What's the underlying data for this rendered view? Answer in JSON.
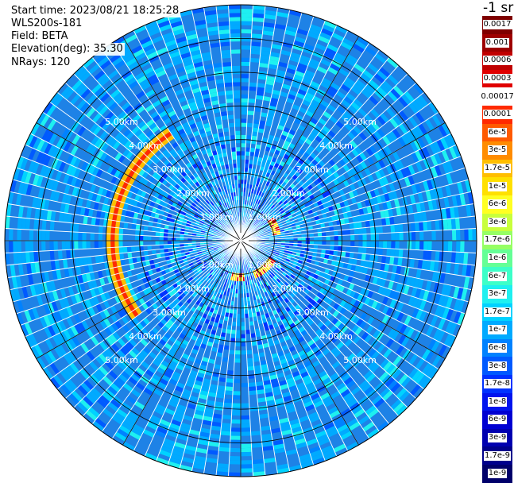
{
  "info": {
    "start_time": "Start time: 2023/08/21 18:25:28",
    "instrument": "WLS200s-181",
    "field": "Field: BETA",
    "elevation": "Elevation(deg): 35.30",
    "nrays": "NRays: 120"
  },
  "colorbar": {
    "unit_label": "-1 sr",
    "entries": [
      {
        "label": "0.0017",
        "color": "#7f0000"
      },
      {
        "label": "0.001",
        "color": "#9e0000"
      },
      {
        "label": "0.0006",
        "color": "#c00000"
      },
      {
        "label": "0.0003",
        "color": "#e00000"
      },
      {
        "label": "0.00017",
        "color": "#ffffff"
      },
      {
        "label": "0.0001",
        "color": "#ff2a00"
      },
      {
        "label": "6e-5",
        "color": "#ff5a00"
      },
      {
        "label": "3e-5",
        "color": "#ff8c00"
      },
      {
        "label": "1.7e-5",
        "color": "#ffbe00"
      },
      {
        "label": "1e-5",
        "color": "#ffe000"
      },
      {
        "label": "6e-6",
        "color": "#ffff22"
      },
      {
        "label": "3e-6",
        "color": "#c8ff3c"
      },
      {
        "label": "1.7e-6",
        "color": "#96ff64"
      },
      {
        "label": "1e-6",
        "color": "#64ff96"
      },
      {
        "label": "6e-7",
        "color": "#3cffc8"
      },
      {
        "label": "3e-7",
        "color": "#1ef0f0"
      },
      {
        "label": "1.7e-7",
        "color": "#00d2ff"
      },
      {
        "label": "1e-7",
        "color": "#00aaff"
      },
      {
        "label": "6e-8",
        "color": "#0082ff"
      },
      {
        "label": "3e-8",
        "color": "#005aff"
      },
      {
        "label": "1.7e-8",
        "color": "#0032ff"
      },
      {
        "label": "1e-8",
        "color": "#0014ee"
      },
      {
        "label": "6e-9",
        "color": "#0000d2"
      },
      {
        "label": "3e-9",
        "color": "#0000b0"
      },
      {
        "label": "1.7e-9",
        "color": "#00008c"
      },
      {
        "label": "1e-9",
        "color": "#00006a"
      }
    ]
  },
  "ppi": {
    "range_rings_km": [
      1,
      2,
      3,
      4,
      5
    ],
    "ring_labels": [
      "1.00km",
      "2.00km",
      "3.00km",
      "4.00km",
      "5.00km"
    ],
    "max_range_km": 7,
    "n_rays": 120,
    "background_color": "#1e82e6",
    "grid_color": "#000000"
  }
}
